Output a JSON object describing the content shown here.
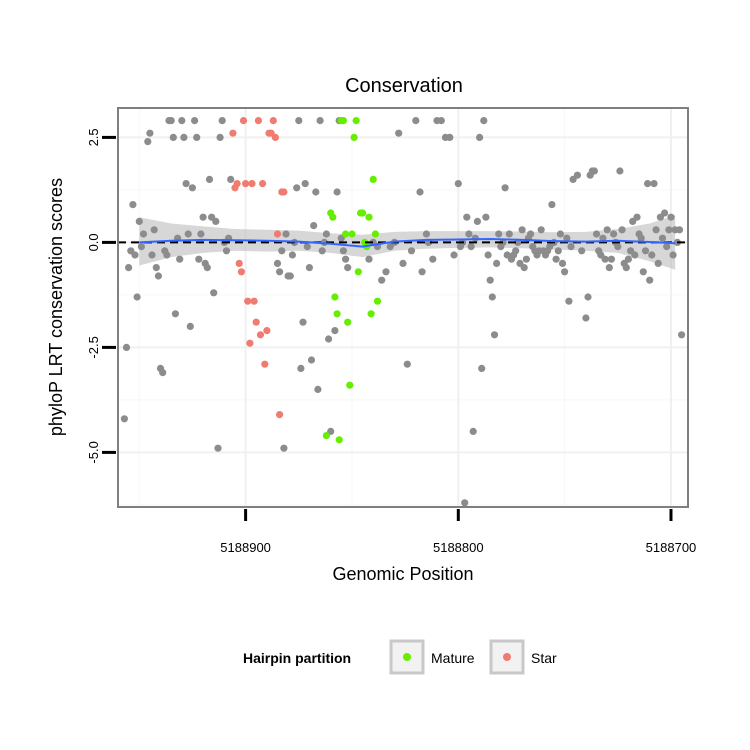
{
  "chart_data": {
    "type": "scatter",
    "title": "Conservation",
    "xlabel": "Genomic Position",
    "ylabel": "phyloP LRT conservation scores",
    "xlim": [
      5188960,
      5188692
    ],
    "x_reversed": true,
    "ylim": [
      -6.3,
      3.2
    ],
    "x_ticks": [
      5188900,
      5188800,
      5188700
    ],
    "x_tick_labels": [
      "5188900",
      "5188800",
      "5188700"
    ],
    "y_ticks": [
      2.5,
      0.0,
      -2.5,
      -5.0
    ],
    "y_tick_labels": [
      "2.5",
      "0.0",
      "-2.5",
      "-5.0"
    ],
    "grid": true,
    "reference_line": {
      "y": 0,
      "style": "dashed",
      "color": "#000000"
    },
    "smooth": {
      "color": "#3366ff",
      "band_color": "#bdbdbd",
      "x": [
        5188950,
        5188935,
        5188920,
        5188905,
        5188890,
        5188875,
        5188860,
        5188845,
        5188830,
        5188815,
        5188800,
        5188785,
        5188770,
        5188755,
        5188740,
        5188725,
        5188710,
        5188698
      ],
      "y": [
        0.0,
        0.04,
        0.06,
        0.05,
        0.04,
        0.02,
        -0.03,
        -0.1,
        0.02,
        0.06,
        0.07,
        0.08,
        0.06,
        0.03,
        0.02,
        0.04,
        0.01,
        -0.02
      ],
      "lower": [
        -0.55,
        -0.35,
        -0.25,
        -0.2,
        -0.22,
        -0.2,
        -0.25,
        -0.35,
        -0.2,
        -0.15,
        -0.13,
        -0.12,
        -0.14,
        -0.17,
        -0.2,
        -0.25,
        -0.45,
        -0.65
      ],
      "upper": [
        0.6,
        0.45,
        0.38,
        0.32,
        0.3,
        0.28,
        0.22,
        0.18,
        0.25,
        0.27,
        0.27,
        0.27,
        0.26,
        0.24,
        0.25,
        0.32,
        0.45,
        0.65
      ]
    },
    "legend": {
      "title": "Hairpin partition",
      "placement": "bottom",
      "entries": [
        {
          "label": "Mature",
          "color": "#66ee00"
        },
        {
          "label": "Star",
          "color": "#f07b70"
        }
      ]
    },
    "series": [
      {
        "group": "other",
        "color": "#8c8c8c",
        "points": [
          [
            5188957,
            -4.2
          ],
          [
            5188956,
            -2.5
          ],
          [
            5188955,
            -0.6
          ],
          [
            5188954,
            -0.2
          ],
          [
            5188953,
            0.9
          ],
          [
            5188952,
            -0.3
          ],
          [
            5188951,
            -1.3
          ],
          [
            5188950,
            0.5
          ],
          [
            5188949,
            -0.1
          ],
          [
            5188948,
            0.2
          ],
          [
            5188946,
            2.4
          ],
          [
            5188945,
            2.6
          ],
          [
            5188944,
            -0.3
          ],
          [
            5188943,
            0.3
          ],
          [
            5188942,
            -0.6
          ],
          [
            5188941,
            -0.8
          ],
          [
            5188940,
            -3.0
          ],
          [
            5188939,
            -3.1
          ],
          [
            5188938,
            -0.2
          ],
          [
            5188937,
            -0.3
          ],
          [
            5188936,
            2.9
          ],
          [
            5188935,
            2.9
          ],
          [
            5188934,
            2.5
          ],
          [
            5188933,
            -1.7
          ],
          [
            5188932,
            0.1
          ],
          [
            5188931,
            -0.4
          ],
          [
            5188930,
            2.9
          ],
          [
            5188929,
            2.5
          ],
          [
            5188928,
            1.4
          ],
          [
            5188927,
            0.2
          ],
          [
            5188926,
            -2.0
          ],
          [
            5188925,
            1.3
          ],
          [
            5188924,
            2.9
          ],
          [
            5188923,
            2.5
          ],
          [
            5188922,
            -0.4
          ],
          [
            5188921,
            0.2
          ],
          [
            5188920,
            0.6
          ],
          [
            5188919,
            -0.5
          ],
          [
            5188918,
            -0.6
          ],
          [
            5188917,
            1.5
          ],
          [
            5188916,
            0.6
          ],
          [
            5188915,
            -1.2
          ],
          [
            5188914,
            0.5
          ],
          [
            5188913,
            -4.9
          ],
          [
            5188912,
            2.5
          ],
          [
            5188911,
            2.9
          ],
          [
            5188910,
            0.0
          ],
          [
            5188909,
            -0.2
          ],
          [
            5188908,
            0.1
          ],
          [
            5188907,
            1.5
          ],
          [
            5188885,
            -0.5
          ],
          [
            5188884,
            -0.7
          ],
          [
            5188883,
            -0.2
          ],
          [
            5188882,
            -4.9
          ],
          [
            5188881,
            0.2
          ],
          [
            5188880,
            -0.8
          ],
          [
            5188879,
            -0.8
          ],
          [
            5188878,
            -0.3
          ],
          [
            5188877,
            0.0
          ],
          [
            5188876,
            1.3
          ],
          [
            5188875,
            2.9
          ],
          [
            5188874,
            -3.0
          ],
          [
            5188873,
            -1.9
          ],
          [
            5188872,
            1.4
          ],
          [
            5188871,
            -0.1
          ],
          [
            5188870,
            -0.6
          ],
          [
            5188869,
            -2.8
          ],
          [
            5188868,
            0.4
          ],
          [
            5188867,
            1.2
          ],
          [
            5188866,
            -3.5
          ],
          [
            5188865,
            2.9
          ],
          [
            5188864,
            -0.2
          ],
          [
            5188863,
            0.0
          ],
          [
            5188862,
            0.2
          ],
          [
            5188861,
            -2.3
          ],
          [
            5188860,
            -4.5
          ],
          [
            5188858,
            -2.1
          ],
          [
            5188857,
            1.2
          ],
          [
            5188856,
            2.9
          ],
          [
            5188855,
            0.1
          ],
          [
            5188854,
            -0.2
          ],
          [
            5188853,
            -0.4
          ],
          [
            5188852,
            -0.6
          ],
          [
            5188842,
            -0.4
          ],
          [
            5188840,
            0.0
          ],
          [
            5188838,
            -0.1
          ],
          [
            5188836,
            -0.9
          ],
          [
            5188834,
            -0.7
          ],
          [
            5188832,
            -0.1
          ],
          [
            5188830,
            0.0
          ],
          [
            5188828,
            2.6
          ],
          [
            5188826,
            -0.5
          ],
          [
            5188824,
            -2.9
          ],
          [
            5188822,
            -0.2
          ],
          [
            5188820,
            2.9
          ],
          [
            5188818,
            1.2
          ],
          [
            5188817,
            -0.7
          ],
          [
            5188815,
            0.2
          ],
          [
            5188814,
            0.0
          ],
          [
            5188812,
            -0.4
          ],
          [
            5188810,
            2.9
          ],
          [
            5188808,
            2.9
          ],
          [
            5188806,
            2.5
          ],
          [
            5188804,
            2.5
          ],
          [
            5188802,
            -0.3
          ],
          [
            5188800,
            1.4
          ],
          [
            5188799,
            -0.1
          ],
          [
            5188798,
            0.0
          ],
          [
            5188797,
            -6.2
          ],
          [
            5188796,
            0.6
          ],
          [
            5188795,
            0.2
          ],
          [
            5188794,
            -0.1
          ],
          [
            5188793,
            -4.5
          ],
          [
            5188792,
            0.1
          ],
          [
            5188791,
            0.5
          ],
          [
            5188790,
            2.5
          ],
          [
            5188789,
            -3.0
          ],
          [
            5188788,
            2.9
          ],
          [
            5188787,
            0.6
          ],
          [
            5188786,
            -0.3
          ],
          [
            5188785,
            -0.9
          ],
          [
            5188784,
            -1.3
          ],
          [
            5188783,
            -2.2
          ],
          [
            5188782,
            -0.5
          ],
          [
            5188781,
            0.2
          ],
          [
            5188780,
            -0.1
          ],
          [
            5188779,
            0.0
          ],
          [
            5188778,
            1.3
          ],
          [
            5188777,
            -0.3
          ],
          [
            5188776,
            0.2
          ],
          [
            5188775,
            -0.4
          ],
          [
            5188774,
            -0.3
          ],
          [
            5188773,
            -0.2
          ],
          [
            5188772,
            0.0
          ],
          [
            5188771,
            -0.5
          ],
          [
            5188770,
            0.3
          ],
          [
            5188769,
            -0.6
          ],
          [
            5188768,
            -0.4
          ],
          [
            5188767,
            0.1
          ],
          [
            5188766,
            0.2
          ],
          [
            5188765,
            -0.1
          ],
          [
            5188764,
            -0.2
          ],
          [
            5188763,
            -0.3
          ],
          [
            5188762,
            -0.2
          ],
          [
            5188761,
            0.3
          ],
          [
            5188760,
            -0.2
          ],
          [
            5188759,
            -0.3
          ],
          [
            5188758,
            -0.2
          ],
          [
            5188757,
            -0.1
          ],
          [
            5188756,
            0.9
          ],
          [
            5188755,
            0.0
          ],
          [
            5188754,
            -0.4
          ],
          [
            5188753,
            -0.2
          ],
          [
            5188752,
            0.2
          ],
          [
            5188751,
            -0.5
          ],
          [
            5188750,
            -0.7
          ],
          [
            5188749,
            0.1
          ],
          [
            5188748,
            -1.4
          ],
          [
            5188747,
            -0.1
          ],
          [
            5188746,
            1.5
          ],
          [
            5188744,
            1.6
          ],
          [
            5188742,
            -0.2
          ],
          [
            5188740,
            -1.8
          ],
          [
            5188739,
            -1.3
          ],
          [
            5188738,
            1.6
          ],
          [
            5188737,
            1.7
          ],
          [
            5188736,
            1.7
          ],
          [
            5188735,
            0.2
          ],
          [
            5188734,
            -0.2
          ],
          [
            5188733,
            -0.3
          ],
          [
            5188732,
            0.1
          ],
          [
            5188731,
            -0.4
          ],
          [
            5188730,
            0.3
          ],
          [
            5188729,
            -0.6
          ],
          [
            5188728,
            -0.4
          ],
          [
            5188727,
            0.2
          ],
          [
            5188726,
            0.0
          ],
          [
            5188725,
            -0.1
          ],
          [
            5188724,
            1.7
          ],
          [
            5188723,
            0.3
          ],
          [
            5188722,
            -0.5
          ],
          [
            5188721,
            -0.6
          ],
          [
            5188720,
            -0.4
          ],
          [
            5188719,
            -0.2
          ],
          [
            5188718,
            0.5
          ],
          [
            5188717,
            -0.3
          ],
          [
            5188716,
            0.6
          ],
          [
            5188715,
            0.2
          ],
          [
            5188714,
            0.1
          ],
          [
            5188713,
            -0.7
          ],
          [
            5188712,
            -0.2
          ],
          [
            5188711,
            1.4
          ],
          [
            5188710,
            -0.9
          ],
          [
            5188709,
            -0.3
          ],
          [
            5188708,
            1.4
          ],
          [
            5188707,
            0.3
          ],
          [
            5188706,
            -0.5
          ],
          [
            5188705,
            0.6
          ],
          [
            5188704,
            0.1
          ],
          [
            5188703,
            0.7
          ],
          [
            5188702,
            -0.1
          ],
          [
            5188701,
            0.3
          ],
          [
            5188700,
            0.6
          ],
          [
            5188699,
            -0.3
          ],
          [
            5188698,
            0.3
          ],
          [
            5188697,
            0.0
          ],
          [
            5188696,
            0.3
          ],
          [
            5188695,
            -2.2
          ]
        ]
      },
      {
        "group": "Star",
        "color": "#f07b70",
        "points": [
          [
            5188906,
            2.6
          ],
          [
            5188905,
            1.3
          ],
          [
            5188904,
            1.4
          ],
          [
            5188903,
            -0.5
          ],
          [
            5188902,
            -0.7
          ],
          [
            5188901,
            2.9
          ],
          [
            5188900,
            1.4
          ],
          [
            5188899,
            -1.4
          ],
          [
            5188898,
            -2.4
          ],
          [
            5188897,
            1.4
          ],
          [
            5188896,
            -1.4
          ],
          [
            5188895,
            -1.9
          ],
          [
            5188894,
            2.9
          ],
          [
            5188893,
            -2.2
          ],
          [
            5188892,
            1.4
          ],
          [
            5188891,
            -2.9
          ],
          [
            5188890,
            -2.1
          ],
          [
            5188889,
            2.6
          ],
          [
            5188888,
            2.6
          ],
          [
            5188887,
            2.9
          ],
          [
            5188886,
            2.5
          ],
          [
            5188885,
            0.2
          ],
          [
            5188884,
            -4.1
          ],
          [
            5188883,
            1.2
          ],
          [
            5188882,
            1.2
          ]
        ]
      },
      {
        "group": "Mature",
        "color": "#66ee00",
        "points": [
          [
            5188862,
            -4.6
          ],
          [
            5188860,
            0.7
          ],
          [
            5188859,
            0.6
          ],
          [
            5188858,
            -1.3
          ],
          [
            5188857,
            -1.7
          ],
          [
            5188856,
            -4.7
          ],
          [
            5188855,
            2.9
          ],
          [
            5188854,
            2.9
          ],
          [
            5188853,
            0.2
          ],
          [
            5188852,
            -1.9
          ],
          [
            5188851,
            -3.4
          ],
          [
            5188850,
            0.2
          ],
          [
            5188849,
            2.5
          ],
          [
            5188848,
            2.9
          ],
          [
            5188847,
            -0.7
          ],
          [
            5188846,
            0.7
          ],
          [
            5188845,
            0.7
          ],
          [
            5188844,
            0.0
          ],
          [
            5188843,
            -0.1
          ],
          [
            5188842,
            0.6
          ],
          [
            5188841,
            -1.7
          ],
          [
            5188840,
            1.5
          ],
          [
            5188839,
            0.2
          ],
          [
            5188838,
            -1.4
          ]
        ]
      }
    ]
  }
}
